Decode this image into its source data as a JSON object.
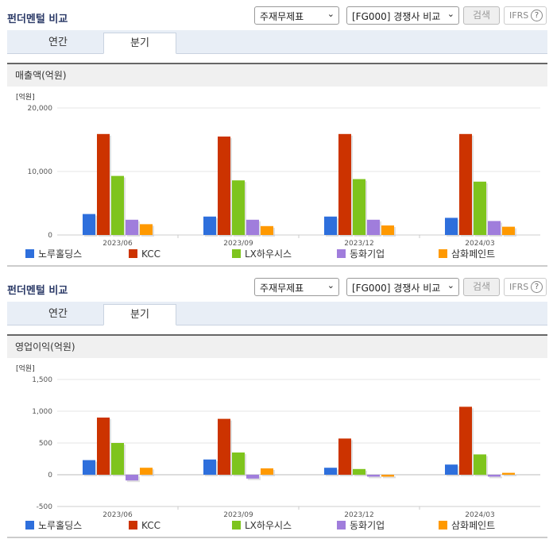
{
  "sections": [
    {
      "title": "펀더멘털 비교",
      "select_statement": "주재무제표",
      "select_compare": "[FG000] 경쟁사 비교",
      "search_label": "검색",
      "ifrs_label": "IFRS",
      "tabs": [
        "연간",
        "분기"
      ],
      "active_tab": 1,
      "panel_title": "매출액(억원)"
    },
    {
      "title": "펀더멘털 비교",
      "select_statement": "주재무제표",
      "select_compare": "[FG000] 경쟁사 비교",
      "search_label": "검색",
      "ifrs_label": "IFRS",
      "tabs": [
        "연간",
        "분기"
      ],
      "active_tab": 1,
      "panel_title": "영업이익(억원)"
    }
  ],
  "colors": {
    "노루홀딩스": "#2e6fdc",
    "KCC": "#cc3300",
    "LX하우시스": "#7ec41d",
    "동화기업": "#a07ddc",
    "삼화페인트": "#ff9900"
  },
  "chart_data": [
    {
      "type": "bar",
      "title": "",
      "unit_label": "[억원]",
      "categories": [
        "2023/06",
        "2023/09",
        "2023/12",
        "2024/03"
      ],
      "ylim": [
        0,
        20000
      ],
      "yticks": [
        0,
        10000,
        20000
      ],
      "ytick_labels": [
        "0",
        "10,000",
        "20,000"
      ],
      "grid": true,
      "legend": "bottom",
      "series": [
        {
          "name": "노루홀딩스",
          "values": [
            3300,
            2900,
            2900,
            2700
          ]
        },
        {
          "name": "KCC",
          "values": [
            15900,
            15500,
            15900,
            15900
          ]
        },
        {
          "name": "LX하우시스",
          "values": [
            9300,
            8600,
            8800,
            8400
          ]
        },
        {
          "name": "동화기업",
          "values": [
            2400,
            2400,
            2400,
            2200
          ]
        },
        {
          "name": "삼화페인트",
          "values": [
            1700,
            1400,
            1500,
            1300
          ]
        }
      ]
    },
    {
      "type": "bar",
      "title": "",
      "unit_label": "[억원]",
      "categories": [
        "2023/06",
        "2023/09",
        "2023/12",
        "2024/03"
      ],
      "ylim": [
        -500,
        1500
      ],
      "yticks": [
        -500,
        0,
        500,
        1000,
        1500
      ],
      "ytick_labels": [
        "-500",
        "0",
        "500",
        "1,000",
        "1,500"
      ],
      "grid": true,
      "legend": "bottom",
      "series": [
        {
          "name": "노루홀딩스",
          "values": [
            230,
            240,
            110,
            160
          ]
        },
        {
          "name": "KCC",
          "values": [
            900,
            880,
            570,
            1070
          ]
        },
        {
          "name": "LX하우시스",
          "values": [
            500,
            350,
            90,
            320
          ]
        },
        {
          "name": "동화기업",
          "values": [
            -90,
            -60,
            -30,
            -30
          ]
        },
        {
          "name": "삼화페인트",
          "values": [
            110,
            100,
            -30,
            30
          ]
        }
      ]
    }
  ]
}
